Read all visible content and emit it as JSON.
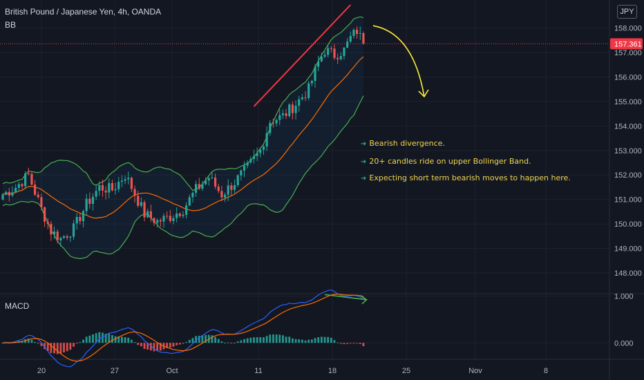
{
  "header": {
    "title": "British Pound / Japanese Yen, 4h, OANDA",
    "indicator": "BB",
    "currency": "JPY"
  },
  "macd_label": "MACD",
  "annotations": [
    "Bearish divergence.",
    "20+ candles ride on upper Bollinger Band.",
    "Expecting short term bearish moves to happen here."
  ],
  "colors": {
    "background": "#131722",
    "up_candle": "#26a69a",
    "down_candle": "#ef5350",
    "bb_band": "#4caf50",
    "bb_basis": "#ff6d00",
    "macd_line": "#2962ff",
    "signal_line": "#ff6d00",
    "price_tag": "#f23645",
    "annotation_text": "#f0d64f",
    "trend_line": "#f23645",
    "divergence_line": "#4caf50",
    "forecast_arrow": "#ffeb3b"
  },
  "chart_data": [
    {
      "type": "candlestick",
      "title": "British Pound / Japanese Yen, 4h, OANDA",
      "overlay": "Bollinger Bands (BB)",
      "y_ticks": [
        148.0,
        149.0,
        150.0,
        151.0,
        152.0,
        153.0,
        154.0,
        155.0,
        156.0,
        157.0,
        158.0
      ],
      "ylim": [
        147.15,
        159.15
      ],
      "x_ticks": [
        "20",
        "27",
        "Oct",
        "11",
        "18",
        "25",
        "Nov",
        "8"
      ],
      "last_price": "157.361",
      "close_path": [
        {
          "candle": 0,
          "close": 151.2
        },
        {
          "candle": 4,
          "close": 151.5
        },
        {
          "candle": 8,
          "close": 152.0
        },
        {
          "candle": 12,
          "close": 150.6
        },
        {
          "candle": 15,
          "close": 149.7
        },
        {
          "candle": 18,
          "close": 149.4
        },
        {
          "candle": 22,
          "close": 149.8
        },
        {
          "candle": 26,
          "close": 150.8
        },
        {
          "candle": 30,
          "close": 151.5
        },
        {
          "candle": 34,
          "close": 151.4
        },
        {
          "candle": 38,
          "close": 152.0
        },
        {
          "candle": 40,
          "close": 151.5
        },
        {
          "candle": 44,
          "close": 150.4
        },
        {
          "candle": 48,
          "close": 150.1
        },
        {
          "candle": 52,
          "close": 150.3
        },
        {
          "candle": 56,
          "close": 150.6
        },
        {
          "candle": 60,
          "close": 151.4
        },
        {
          "candle": 64,
          "close": 151.9
        },
        {
          "candle": 68,
          "close": 151.2
        },
        {
          "candle": 72,
          "close": 151.7
        },
        {
          "candle": 76,
          "close": 152.3
        },
        {
          "candle": 80,
          "close": 153.0
        },
        {
          "candle": 83,
          "close": 154.2
        },
        {
          "candle": 87,
          "close": 154.4
        },
        {
          "candle": 91,
          "close": 154.9
        },
        {
          "candle": 95,
          "close": 155.5
        },
        {
          "candle": 98,
          "close": 156.6
        },
        {
          "candle": 100,
          "close": 157.1
        },
        {
          "candle": 103,
          "close": 156.9
        },
        {
          "candle": 106,
          "close": 157.1
        },
        {
          "candle": 108,
          "close": 157.6
        },
        {
          "candle": 110,
          "close": 157.9
        },
        {
          "candle": 112,
          "close": 157.36
        }
      ]
    },
    {
      "type": "line",
      "title": "MACD",
      "y_ticks": [
        0.0,
        1.0
      ],
      "ylim": [
        -0.35,
        1.05
      ],
      "series": []
    }
  ]
}
